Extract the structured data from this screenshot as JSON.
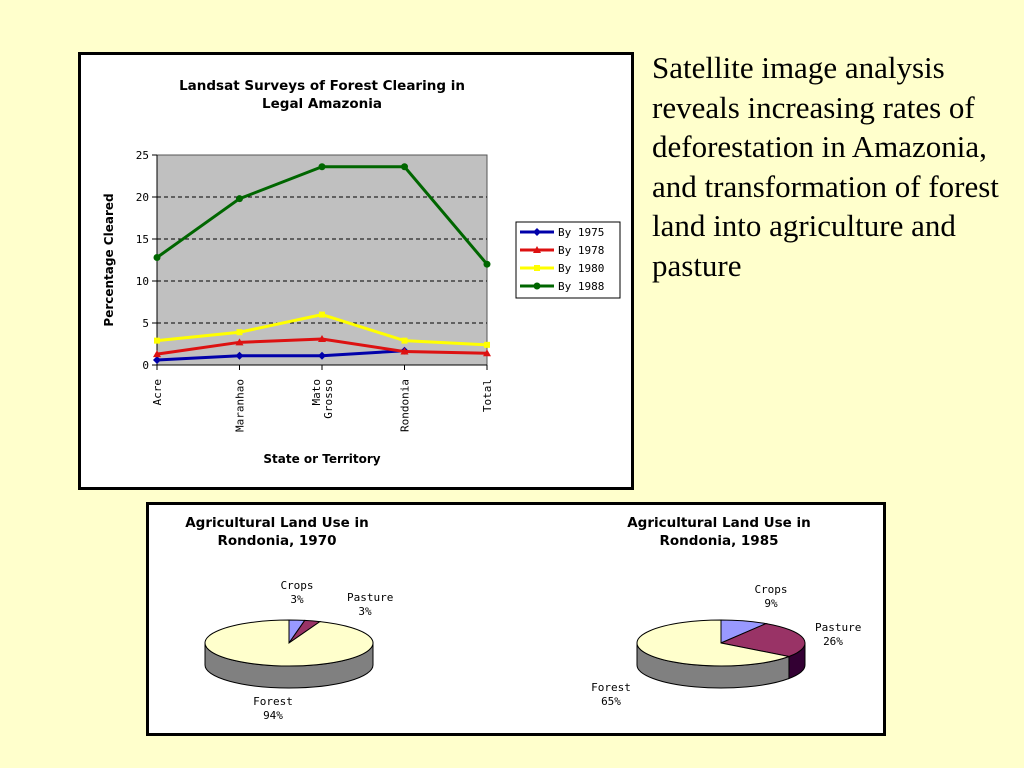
{
  "slide": {
    "text": "Satellite image analysis reveals increasing rates of deforestation in Amazonia, and transformation of forest land into agriculture and pasture"
  },
  "chart_data": [
    {
      "type": "line",
      "title": "Landsat Surveys of Forest Clearing in Legal Amazonia",
      "title_lines": [
        "Landsat Surveys of Forest Clearing in",
        "Legal Amazonia"
      ],
      "xlabel": "State or Territory",
      "ylabel": "Percentage Cleared",
      "categories": [
        [
          "Acre"
        ],
        [
          "Maranhao"
        ],
        [
          "Mato",
          "Grosso"
        ],
        [
          "Rondonia"
        ],
        [
          "Total"
        ]
      ],
      "ylim": [
        0,
        25
      ],
      "yticks": [
        0,
        5,
        10,
        15,
        20,
        25
      ],
      "grid": true,
      "legend_position": "right",
      "series": [
        {
          "name": "By 1975",
          "color": "#0000AA",
          "marker": "diamond",
          "values": [
            0.6,
            1.1,
            1.1,
            1.7,
            null
          ]
        },
        {
          "name": "By 1978",
          "color": "#DD1111",
          "marker": "triangle",
          "values": [
            1.3,
            2.7,
            3.1,
            1.6,
            1.4
          ]
        },
        {
          "name": "By 1980",
          "color": "#FFFF00",
          "marker": "square",
          "values": [
            2.9,
            3.9,
            6.0,
            2.9,
            2.4
          ]
        },
        {
          "name": "By 1988",
          "color": "#006600",
          "marker": "circle",
          "values": [
            12.8,
            19.8,
            23.6,
            23.6,
            12.0
          ]
        }
      ]
    },
    {
      "type": "pie",
      "title": "Agricultural Land Use in Rondonia, 1970",
      "title_lines": [
        "Agricultural Land Use in",
        "Rondonia, 1970"
      ],
      "slices": [
        {
          "name": "Crops",
          "value": 3,
          "label": "3%",
          "color": "#9999FF"
        },
        {
          "name": "Pasture",
          "value": 3,
          "label": "3%",
          "color": "#993366"
        },
        {
          "name": "Forest",
          "value": 94,
          "label": "94%",
          "color": "#FFFFCC"
        }
      ]
    },
    {
      "type": "pie",
      "title": "Agricultural Land Use in Rondonia, 1985",
      "title_lines": [
        "Agricultural Land Use in",
        "Rondonia, 1985"
      ],
      "slices": [
        {
          "name": "Crops",
          "value": 9,
          "label": "9%",
          "color": "#9999FF"
        },
        {
          "name": "Pasture",
          "value": 26,
          "label": "26%",
          "color": "#993366"
        },
        {
          "name": "Forest",
          "value": 65,
          "label": "65%",
          "color": "#FFFFCC"
        }
      ]
    }
  ]
}
